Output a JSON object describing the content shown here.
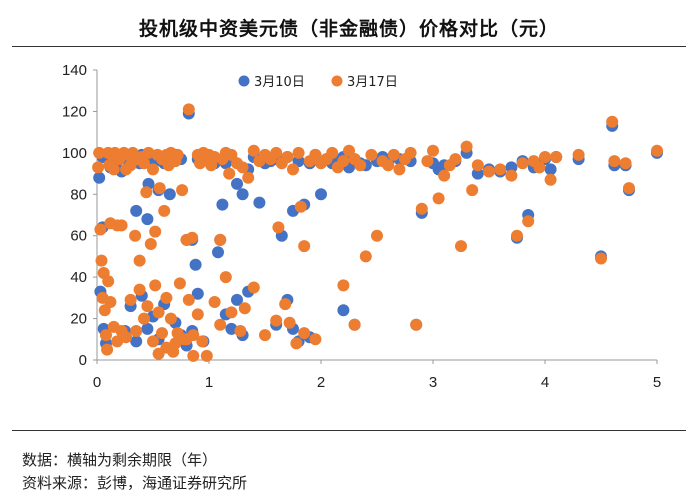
{
  "chart_data": {
    "type": "scatter",
    "title": "投机级中资美元债（非金融债）价格对比（元）",
    "xlabel": "",
    "ylabel": "",
    "xlim": [
      0,
      5
    ],
    "ylim": [
      0,
      140
    ],
    "x_ticks": [
      "0",
      "1",
      "2",
      "3",
      "4",
      "5"
    ],
    "y_ticks": [
      "0",
      "20",
      "40",
      "60",
      "80",
      "100",
      "120",
      "140"
    ],
    "grid": false,
    "legend_position": "top",
    "series": [
      {
        "name": "3月10日",
        "color": "#4472C4",
        "points": [
          [
            0.02,
            88
          ],
          [
            0.05,
            98
          ],
          [
            0.05,
            64
          ],
          [
            0.03,
            33
          ],
          [
            0.06,
            15
          ],
          [
            0.08,
            8
          ],
          [
            0.1,
            97
          ],
          [
            0.12,
            93
          ],
          [
            0.15,
            99
          ],
          [
            0.18,
            96
          ],
          [
            0.2,
            98
          ],
          [
            0.22,
            91
          ],
          [
            0.25,
            99
          ],
          [
            0.28,
            96
          ],
          [
            0.3,
            98
          ],
          [
            0.33,
            97
          ],
          [
            0.35,
            72
          ],
          [
            0.38,
            95
          ],
          [
            0.4,
            99
          ],
          [
            0.42,
            98
          ],
          [
            0.45,
            68
          ],
          [
            0.46,
            85
          ],
          [
            0.48,
            99
          ],
          [
            0.5,
            97
          ],
          [
            0.52,
            96
          ],
          [
            0.55,
            82
          ],
          [
            0.6,
            95
          ],
          [
            0.62,
            97
          ],
          [
            0.65,
            80
          ],
          [
            0.7,
            99
          ],
          [
            0.75,
            97
          ],
          [
            0.8,
            58
          ],
          [
            0.82,
            119
          ],
          [
            0.85,
            58
          ],
          [
            0.88,
            46
          ],
          [
            0.9,
            97
          ],
          [
            0.95,
            98
          ],
          [
            1.0,
            96
          ],
          [
            1.05,
            95
          ],
          [
            1.08,
            52
          ],
          [
            1.1,
            58
          ],
          [
            1.12,
            75
          ],
          [
            1.15,
            95
          ],
          [
            1.2,
            97
          ],
          [
            1.25,
            85
          ],
          [
            1.3,
            80
          ],
          [
            1.35,
            92
          ],
          [
            1.4,
            98
          ],
          [
            1.45,
            76
          ],
          [
            1.5,
            95
          ],
          [
            1.55,
            96
          ],
          [
            1.6,
            97
          ],
          [
            1.65,
            60
          ],
          [
            1.7,
            98
          ],
          [
            1.75,
            72
          ],
          [
            1.8,
            96
          ],
          [
            1.85,
            75
          ],
          [
            1.9,
            95
          ],
          [
            1.95,
            99
          ],
          [
            2.0,
            80
          ],
          [
            2.05,
            97
          ],
          [
            2.1,
            95
          ],
          [
            2.15,
            96
          ],
          [
            2.2,
            98
          ],
          [
            2.25,
            93
          ],
          [
            2.3,
            97
          ],
          [
            2.35,
            95
          ],
          [
            2.4,
            94
          ],
          [
            2.5,
            96
          ],
          [
            2.55,
            98
          ],
          [
            2.6,
            95
          ],
          [
            2.7,
            97
          ],
          [
            2.8,
            96
          ],
          [
            2.85,
            17
          ],
          [
            2.9,
            71
          ],
          [
            3.0,
            95
          ],
          [
            3.05,
            92
          ],
          [
            3.1,
            94
          ],
          [
            3.2,
            96
          ],
          [
            3.3,
            100
          ],
          [
            3.4,
            90
          ],
          [
            3.5,
            92
          ],
          [
            3.6,
            91
          ],
          [
            3.7,
            93
          ],
          [
            3.75,
            59
          ],
          [
            3.8,
            96
          ],
          [
            3.85,
            70
          ],
          [
            3.9,
            93
          ],
          [
            4.0,
            97
          ],
          [
            4.05,
            92
          ],
          [
            4.1,
            98
          ],
          [
            4.3,
            97
          ],
          [
            4.5,
            50
          ],
          [
            4.6,
            113
          ],
          [
            4.62,
            94
          ],
          [
            4.72,
            94
          ],
          [
            4.75,
            82
          ],
          [
            5.0,
            100
          ],
          [
            0.25,
            14
          ],
          [
            0.3,
            26
          ],
          [
            0.35,
            9
          ],
          [
            0.4,
            31
          ],
          [
            0.45,
            15
          ],
          [
            0.5,
            21
          ],
          [
            0.55,
            10
          ],
          [
            0.6,
            27
          ],
          [
            0.7,
            18
          ],
          [
            0.75,
            12
          ],
          [
            0.8,
            7
          ],
          [
            0.85,
            14
          ],
          [
            0.9,
            32
          ],
          [
            0.95,
            9
          ],
          [
            1.15,
            22
          ],
          [
            1.2,
            15
          ],
          [
            1.25,
            29
          ],
          [
            1.3,
            12
          ],
          [
            1.35,
            33
          ],
          [
            1.6,
            17
          ],
          [
            1.7,
            29
          ],
          [
            1.75,
            15
          ],
          [
            1.8,
            9
          ],
          [
            1.9,
            11
          ],
          [
            2.2,
            24
          ],
          [
            2.3,
            17
          ]
        ]
      },
      {
        "name": "3月17日",
        "color": "#ED7D31",
        "points": [
          [
            0.01,
            93
          ],
          [
            0.02,
            100
          ],
          [
            0.03,
            63
          ],
          [
            0.04,
            48
          ],
          [
            0.05,
            30
          ],
          [
            0.06,
            42
          ],
          [
            0.07,
            24
          ],
          [
            0.08,
            12
          ],
          [
            0.09,
            5
          ],
          [
            0.1,
            100
          ],
          [
            0.11,
            94
          ],
          [
            0.12,
            66
          ],
          [
            0.13,
            99
          ],
          [
            0.15,
            92
          ],
          [
            0.16,
            100
          ],
          [
            0.18,
            65
          ],
          [
            0.2,
            97
          ],
          [
            0.22,
            65
          ],
          [
            0.24,
            100
          ],
          [
            0.26,
            92
          ],
          [
            0.28,
            99
          ],
          [
            0.3,
            94
          ],
          [
            0.32,
            100
          ],
          [
            0.34,
            60
          ],
          [
            0.36,
            97
          ],
          [
            0.38,
            48
          ],
          [
            0.4,
            98
          ],
          [
            0.42,
            95
          ],
          [
            0.44,
            81
          ],
          [
            0.46,
            100
          ],
          [
            0.48,
            56
          ],
          [
            0.5,
            92
          ],
          [
            0.52,
            62
          ],
          [
            0.54,
            99
          ],
          [
            0.56,
            83
          ],
          [
            0.58,
            97
          ],
          [
            0.6,
            72
          ],
          [
            0.62,
            99
          ],
          [
            0.64,
            94
          ],
          [
            0.66,
            100
          ],
          [
            0.7,
            96
          ],
          [
            0.72,
            99
          ],
          [
            0.76,
            82
          ],
          [
            0.8,
            58
          ],
          [
            0.82,
            121
          ],
          [
            0.85,
            59
          ],
          [
            0.9,
            99
          ],
          [
            0.92,
            95
          ],
          [
            0.95,
            100
          ],
          [
            0.98,
            97
          ],
          [
            1.0,
            99
          ],
          [
            1.02,
            94
          ],
          [
            1.05,
            98
          ],
          [
            1.1,
            58
          ],
          [
            1.12,
            97
          ],
          [
            1.15,
            100
          ],
          [
            1.18,
            90
          ],
          [
            1.2,
            99
          ],
          [
            1.25,
            95
          ],
          [
            1.3,
            93
          ],
          [
            1.35,
            88
          ],
          [
            1.4,
            101
          ],
          [
            1.45,
            96
          ],
          [
            1.5,
            99
          ],
          [
            1.55,
            97
          ],
          [
            1.6,
            100
          ],
          [
            1.62,
            64
          ],
          [
            1.65,
            95
          ],
          [
            1.7,
            98
          ],
          [
            1.75,
            92
          ],
          [
            1.8,
            100
          ],
          [
            1.82,
            74
          ],
          [
            1.85,
            55
          ],
          [
            1.9,
            96
          ],
          [
            1.95,
            99
          ],
          [
            2.0,
            95
          ],
          [
            2.05,
            97
          ],
          [
            2.1,
            100
          ],
          [
            2.15,
            93
          ],
          [
            2.2,
            96
          ],
          [
            2.25,
            101
          ],
          [
            2.3,
            97
          ],
          [
            2.35,
            94
          ],
          [
            2.4,
            50
          ],
          [
            2.45,
            99
          ],
          [
            2.5,
            60
          ],
          [
            2.55,
            96
          ],
          [
            2.6,
            94
          ],
          [
            2.65,
            99
          ],
          [
            2.7,
            92
          ],
          [
            2.75,
            97
          ],
          [
            2.8,
            100
          ],
          [
            2.85,
            17
          ],
          [
            2.9,
            73
          ],
          [
            2.95,
            96
          ],
          [
            3.0,
            101
          ],
          [
            3.05,
            78
          ],
          [
            3.1,
            89
          ],
          [
            3.15,
            94
          ],
          [
            3.2,
            97
          ],
          [
            3.25,
            55
          ],
          [
            3.3,
            103
          ],
          [
            3.35,
            82
          ],
          [
            3.4,
            94
          ],
          [
            3.5,
            91
          ],
          [
            3.6,
            92
          ],
          [
            3.7,
            89
          ],
          [
            3.75,
            60
          ],
          [
            3.8,
            95
          ],
          [
            3.85,
            67
          ],
          [
            3.9,
            96
          ],
          [
            3.95,
            93
          ],
          [
            4.0,
            98
          ],
          [
            4.05,
            87
          ],
          [
            4.1,
            98
          ],
          [
            4.3,
            99
          ],
          [
            4.5,
            49
          ],
          [
            4.6,
            115
          ],
          [
            4.62,
            96
          ],
          [
            4.72,
            95
          ],
          [
            4.75,
            83
          ],
          [
            5.0,
            101
          ],
          [
            0.1,
            38
          ],
          [
            0.12,
            28
          ],
          [
            0.15,
            16
          ],
          [
            0.18,
            9
          ],
          [
            0.22,
            14
          ],
          [
            0.26,
            11
          ],
          [
            0.3,
            29
          ],
          [
            0.35,
            14
          ],
          [
            0.38,
            34
          ],
          [
            0.42,
            20
          ],
          [
            0.45,
            26
          ],
          [
            0.5,
            9
          ],
          [
            0.52,
            36
          ],
          [
            0.55,
            23
          ],
          [
            0.58,
            13
          ],
          [
            0.62,
            30
          ],
          [
            0.66,
            20
          ],
          [
            0.7,
            8
          ],
          [
            0.74,
            37
          ],
          [
            0.78,
            10
          ],
          [
            0.82,
            29
          ],
          [
            0.86,
            12
          ],
          [
            0.9,
            22
          ],
          [
            0.94,
            9
          ],
          [
            0.98,
            2
          ],
          [
            0.86,
            2
          ],
          [
            1.05,
            28
          ],
          [
            1.1,
            17
          ],
          [
            1.15,
            40
          ],
          [
            1.2,
            23
          ],
          [
            1.28,
            14
          ],
          [
            1.32,
            25
          ],
          [
            1.4,
            35
          ],
          [
            1.5,
            12
          ],
          [
            1.6,
            19
          ],
          [
            1.68,
            27
          ],
          [
            1.72,
            18
          ],
          [
            1.78,
            8
          ],
          [
            1.85,
            13
          ],
          [
            1.95,
            10
          ],
          [
            2.2,
            36
          ],
          [
            2.3,
            17
          ],
          [
            0.55,
            3
          ],
          [
            0.62,
            6
          ],
          [
            0.68,
            4
          ],
          [
            0.72,
            13
          ],
          [
            0.8,
            10
          ]
        ]
      }
    ]
  },
  "footnotes": {
    "line1": "数据：横轴为剩余期限（年）",
    "line2": "资料来源：彭博，海通证券研究所"
  }
}
